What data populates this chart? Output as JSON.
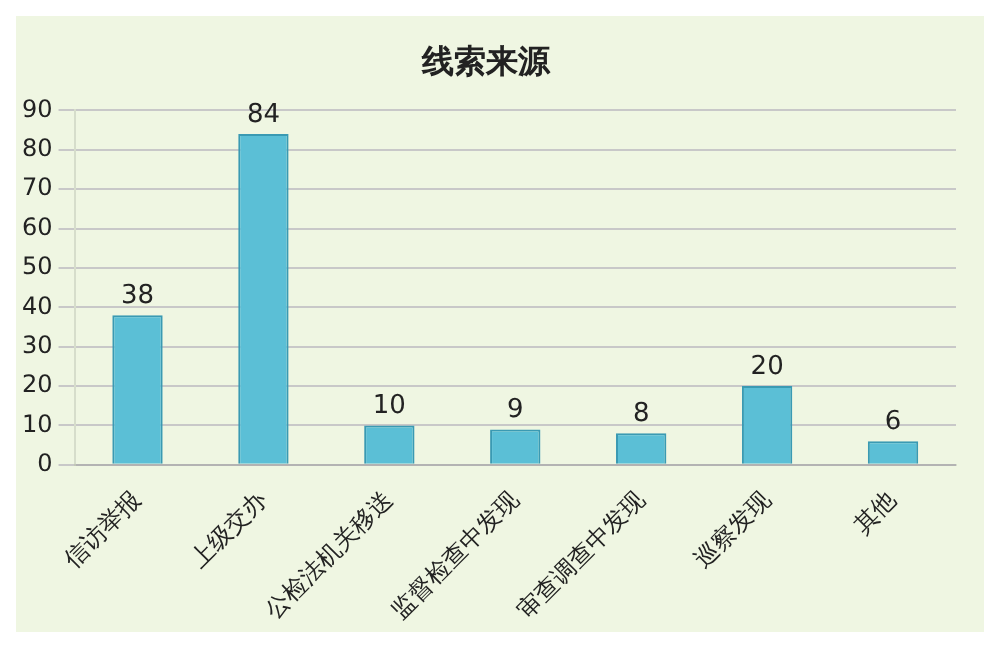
{
  "chart_data": {
    "type": "bar",
    "title": "线索来源",
    "categories": [
      "信访举报",
      "上级交办",
      "公检法机关移送",
      "监督检查中发现",
      "审查调查中发现",
      "巡察发现",
      "其他"
    ],
    "values": [
      38,
      84,
      10,
      9,
      8,
      20,
      6
    ],
    "color": "#5bbfd6",
    "ylim": [
      0,
      90
    ],
    "yticks": [
      0,
      10,
      20,
      30,
      40,
      50,
      60,
      70,
      80,
      90
    ],
    "grid": "y",
    "data_labels": true
  }
}
